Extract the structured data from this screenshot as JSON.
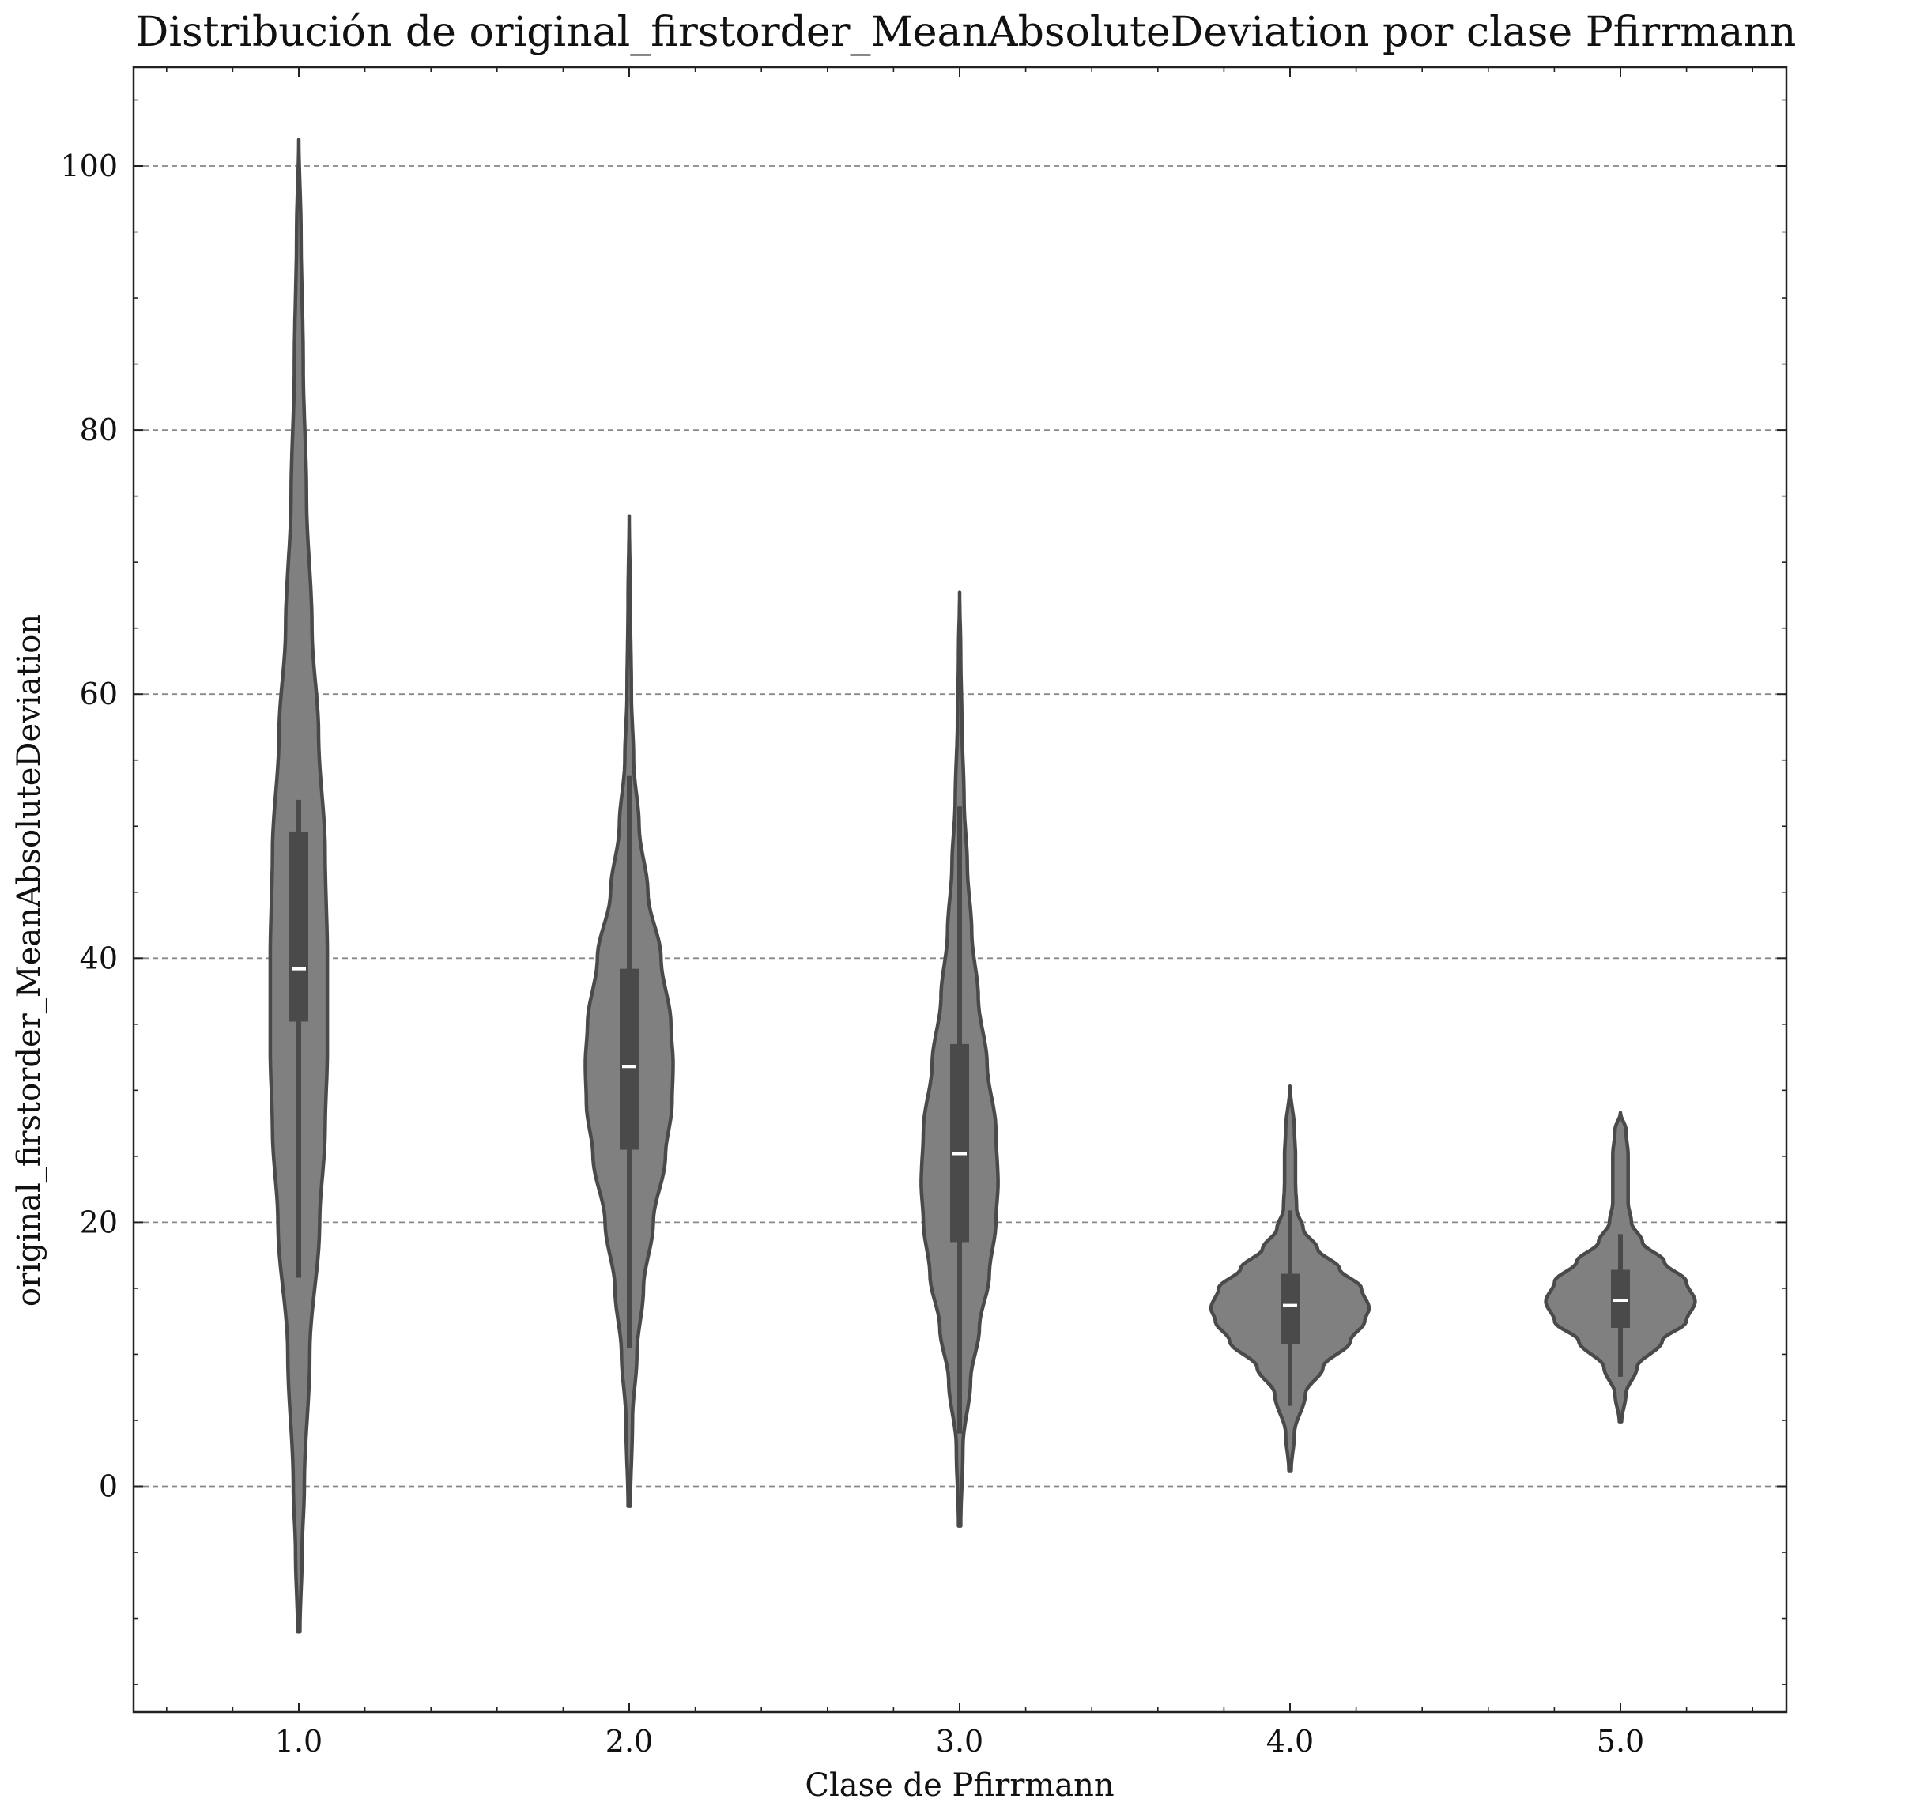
{
  "chart_data": {
    "type": "violin",
    "title": "Distribución de original_firstorder_MeanAbsoluteDeviation por clase Pfirrmann",
    "xlabel": "Clase de Pfirrmann",
    "ylabel": "original_firstorder_MeanAbsoluteDeviation",
    "categories": [
      "1.0",
      "2.0",
      "3.0",
      "4.0",
      "5.0"
    ],
    "ylim": [
      -17,
      107
    ],
    "yticks": [
      0,
      20,
      40,
      60,
      80,
      100
    ],
    "ytick_labels": [
      "0",
      "20",
      "40",
      "60",
      "80",
      "100"
    ],
    "grid": "y-dashed",
    "colors": {
      "fill": "#808080",
      "edge": "#4a4a4a",
      "box": "#4a4a4a",
      "median": "#ffffff"
    },
    "violins": [
      {
        "category": "1.0",
        "min": -11,
        "max": 102,
        "q1": 35.2,
        "median": 39.2,
        "q3": 49.6,
        "whisker_low": 15.8,
        "whisker_high": 52.0,
        "profile": [
          [
            -11,
            0.01
          ],
          [
            -5,
            0.03
          ],
          [
            0,
            0.05
          ],
          [
            10,
            0.1
          ],
          [
            20,
            0.19
          ],
          [
            27,
            0.24
          ],
          [
            33,
            0.26
          ],
          [
            40,
            0.26
          ],
          [
            48,
            0.24
          ],
          [
            57,
            0.18
          ],
          [
            65,
            0.12
          ],
          [
            75,
            0.07
          ],
          [
            85,
            0.04
          ],
          [
            95,
            0.02
          ],
          [
            102,
            0
          ]
        ]
      },
      {
        "category": "2.0",
        "min": -1.5,
        "max": 73.5,
        "q1": 25.5,
        "median": 31.8,
        "q3": 39.2,
        "whisker_low": 10.5,
        "whisker_high": 53.8,
        "profile": [
          [
            -1.5,
            0.01
          ],
          [
            5,
            0.03
          ],
          [
            10,
            0.07
          ],
          [
            15,
            0.13
          ],
          [
            20,
            0.22
          ],
          [
            25,
            0.33
          ],
          [
            29,
            0.39
          ],
          [
            32,
            0.4
          ],
          [
            35,
            0.38
          ],
          [
            40,
            0.29
          ],
          [
            45,
            0.17
          ],
          [
            50,
            0.09
          ],
          [
            55,
            0.04
          ],
          [
            60,
            0.02
          ],
          [
            67,
            0.01
          ],
          [
            73.5,
            0
          ]
        ]
      },
      {
        "category": "3.0",
        "min": -3,
        "max": 67.7,
        "q1": 18.5,
        "median": 25.2,
        "q3": 33.5,
        "whisker_low": 4.0,
        "whisker_high": 51.5,
        "profile": [
          [
            -3,
            0.01
          ],
          [
            3,
            0.03
          ],
          [
            8,
            0.1
          ],
          [
            12,
            0.18
          ],
          [
            16,
            0.27
          ],
          [
            20,
            0.33
          ],
          [
            23,
            0.35
          ],
          [
            27,
            0.33
          ],
          [
            32,
            0.25
          ],
          [
            37,
            0.17
          ],
          [
            42,
            0.11
          ],
          [
            47,
            0.07
          ],
          [
            52,
            0.04
          ],
          [
            58,
            0.02
          ],
          [
            63,
            0.01
          ],
          [
            67.7,
            0
          ]
        ]
      },
      {
        "category": "4.0",
        "min": 1.2,
        "max": 30.3,
        "q1": 10.8,
        "median": 13.7,
        "q3": 16.1,
        "whisker_low": 6.1,
        "whisker_high": 20.9,
        "profile": [
          [
            1.2,
            0.01
          ],
          [
            4,
            0.04
          ],
          [
            7,
            0.14
          ],
          [
            9,
            0.3
          ],
          [
            11,
            0.55
          ],
          [
            12.5,
            0.68
          ],
          [
            13.5,
            0.72
          ],
          [
            15,
            0.65
          ],
          [
            16.5,
            0.45
          ],
          [
            18,
            0.25
          ],
          [
            19.5,
            0.12
          ],
          [
            21,
            0.06
          ],
          [
            23,
            0.05
          ],
          [
            25,
            0.05
          ],
          [
            27,
            0.04
          ],
          [
            30.3,
            0
          ]
        ]
      },
      {
        "category": "5.0",
        "min": 4.9,
        "max": 28.3,
        "q1": 12.0,
        "median": 14.1,
        "q3": 16.4,
        "whisker_low": 8.3,
        "whisker_high": 19.1,
        "profile": [
          [
            4.9,
            0.01
          ],
          [
            7,
            0.05
          ],
          [
            9,
            0.15
          ],
          [
            11,
            0.38
          ],
          [
            12.5,
            0.6
          ],
          [
            14,
            0.68
          ],
          [
            15.5,
            0.6
          ],
          [
            17,
            0.4
          ],
          [
            18.5,
            0.2
          ],
          [
            20,
            0.1
          ],
          [
            21.5,
            0.07
          ],
          [
            23,
            0.07
          ],
          [
            25,
            0.07
          ],
          [
            27,
            0.05
          ],
          [
            28.3,
            0
          ]
        ]
      }
    ]
  }
}
